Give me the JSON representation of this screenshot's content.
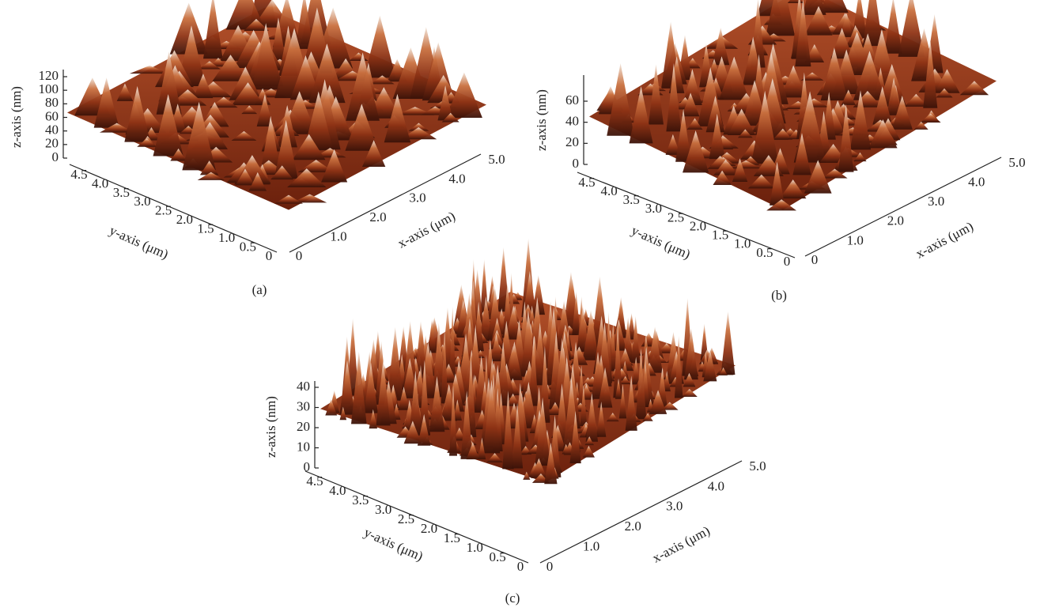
{
  "panels": [
    {
      "label": "(a)",
      "z_axis_label": "z-axis (nm)",
      "y_axis_label": "y-axis (μm)",
      "x_axis_label": "x-axis (μm)",
      "z_ticks": [
        "0",
        "20",
        "40",
        "60",
        "80",
        "100",
        "120"
      ],
      "y_ticks": [
        "4.5",
        "4.0",
        "3.5",
        "3.0",
        "2.5",
        "2.0",
        "1.5",
        "1.0",
        "0.5",
        "0"
      ],
      "x_ticks": [
        "0",
        "1.0",
        "2.0",
        "3.0",
        "4.0",
        "5.0"
      ]
    },
    {
      "label": "(b)",
      "z_axis_label": "z-axis (nm)",
      "y_axis_label": "y-axis (μm)",
      "x_axis_label": "x-axis (μm)",
      "z_ticks": [
        "0",
        "20",
        "40",
        "60"
      ],
      "y_ticks": [
        "4.5",
        "4.0",
        "3.5",
        "3.0",
        "2.5",
        "2.0",
        "1.5",
        "1.0",
        "0.5",
        "0"
      ],
      "x_ticks": [
        "0",
        "1.0",
        "2.0",
        "3.0",
        "4.0",
        "5.0"
      ]
    },
    {
      "label": "(c)",
      "z_axis_label": "z-axis (nm)",
      "y_axis_label": "y-axis (μm)",
      "x_axis_label": "x-axis (μm)",
      "z_ticks": [
        "0",
        "10",
        "20",
        "30",
        "40"
      ],
      "y_ticks": [
        "4.5",
        "4.0",
        "3.5",
        "3.0",
        "2.5",
        "2.0",
        "1.5",
        "1.0",
        "0.5",
        "0"
      ],
      "x_ticks": [
        "0",
        "1.0",
        "2.0",
        "3.0",
        "4.0",
        "5.0"
      ]
    }
  ]
}
